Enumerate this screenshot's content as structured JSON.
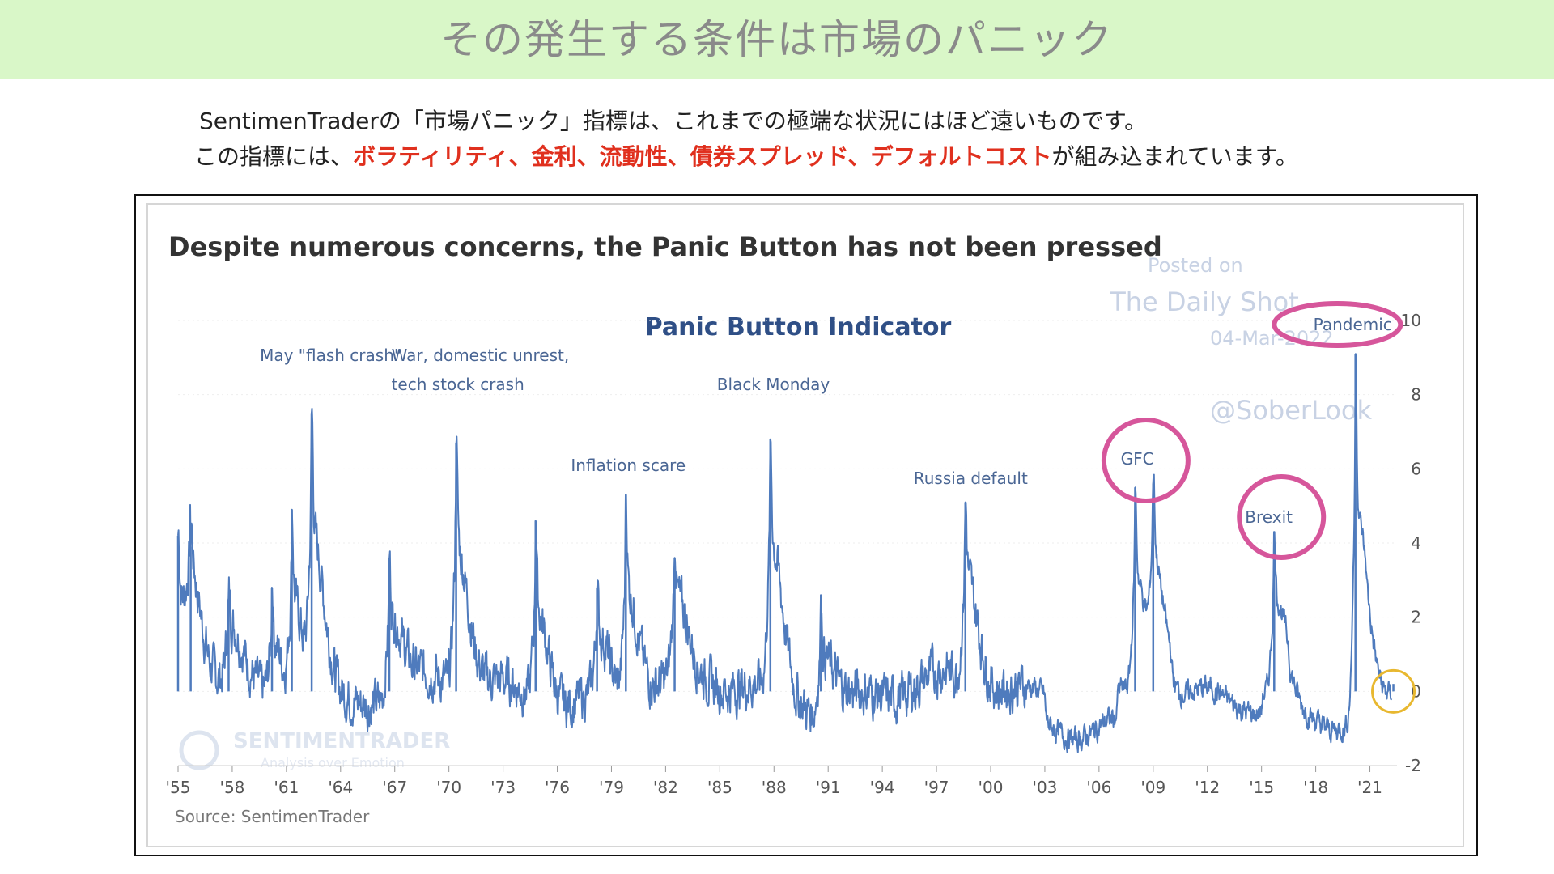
{
  "banner": {
    "title": "その発生する条件は市場のパニック"
  },
  "description": {
    "line1": "SentimenTraderの「市場パニック」指標は、これまでの極端な状況にはほど遠いものです。",
    "line2_prefix": "この指標には、",
    "line2_highlight": "ボラティリティ、金利、流動性、債券スプレッド、デフォルトコスト",
    "line2_suffix": "が組み込まれています。",
    "highlight_color": "#e0301e"
  },
  "chart_data": {
    "type": "line",
    "title": "Despite numerous concerns, the Panic Button has not been pressed",
    "subtitle": "Panic Button Indicator",
    "source": "Source: SentimenTrader",
    "series_color": "#4f7bbd",
    "x_ticks": [
      "'55",
      "'58",
      "'61",
      "'64",
      "'67",
      "'70",
      "'73",
      "'76",
      "'79",
      "'82",
      "'85",
      "'88",
      "'91",
      "'94",
      "'97",
      "'00",
      "'03",
      "'06",
      "'09",
      "'12",
      "'15",
      "'18",
      "'21"
    ],
    "y_ticks": [
      "10",
      "8",
      "6",
      "4",
      "2",
      "0",
      "-2"
    ],
    "xlim": [
      1955,
      2022.5
    ],
    "ylim": [
      -2,
      10
    ],
    "peaks": [
      {
        "x": 1955.0,
        "y": 4.2
      },
      {
        "x": 1955.7,
        "y": 3.9
      },
      {
        "x": 1957.8,
        "y": 2.5
      },
      {
        "x": 1960.2,
        "y": 2.8
      },
      {
        "x": 1961.3,
        "y": 4.9
      },
      {
        "x": 1962.4,
        "y": 7.5
      },
      {
        "x": 1966.7,
        "y": 3.6
      },
      {
        "x": 1970.4,
        "y": 6.7
      },
      {
        "x": 1974.8,
        "y": 4.6
      },
      {
        "x": 1978.2,
        "y": 2.8
      },
      {
        "x": 1979.8,
        "y": 5.3
      },
      {
        "x": 1982.5,
        "y": 3.6
      },
      {
        "x": 1987.8,
        "y": 6.8
      },
      {
        "x": 1990.6,
        "y": 2.6
      },
      {
        "x": 1998.6,
        "y": 5.1
      },
      {
        "x": 2008.0,
        "y": 5.5
      },
      {
        "x": 2009.0,
        "y": 5.6
      },
      {
        "x": 2015.7,
        "y": 4.3
      },
      {
        "x": 2020.2,
        "y": 9.1
      },
      {
        "x": 2022.3,
        "y": 0.2
      }
    ],
    "annotations": [
      {
        "label": "May \"flash crash\"",
        "x": 1962.4
      },
      {
        "label": "War, domestic unrest,",
        "x": 1970.4
      },
      {
        "label": "tech stock crash",
        "x": 1970.4
      },
      {
        "label": "Inflation scare",
        "x": 1979.8
      },
      {
        "label": "Black Monday",
        "x": 1987.8
      },
      {
        "label": "Russia default",
        "x": 1998.6
      },
      {
        "label": "GFC",
        "x": 2008.5
      },
      {
        "label": "Brexit",
        "x": 2015.7
      },
      {
        "label": "Pandemic",
        "x": 2020.2
      }
    ],
    "circles": [
      {
        "label": "GFC",
        "color": "#d6569b"
      },
      {
        "label": "Brexit",
        "color": "#d6569b"
      },
      {
        "label": "Pandemic",
        "color": "#d6569b"
      },
      {
        "label": "current",
        "color": "#e8b830"
      }
    ],
    "watermark": {
      "line1": "Posted on",
      "line2": "The Daily Shot",
      "line3": "04-Mar-2022",
      "line4": "@SoberLook",
      "logo_text": "SENTIMENTRADER",
      "logo_sub": "Analysis over Emotion"
    }
  }
}
